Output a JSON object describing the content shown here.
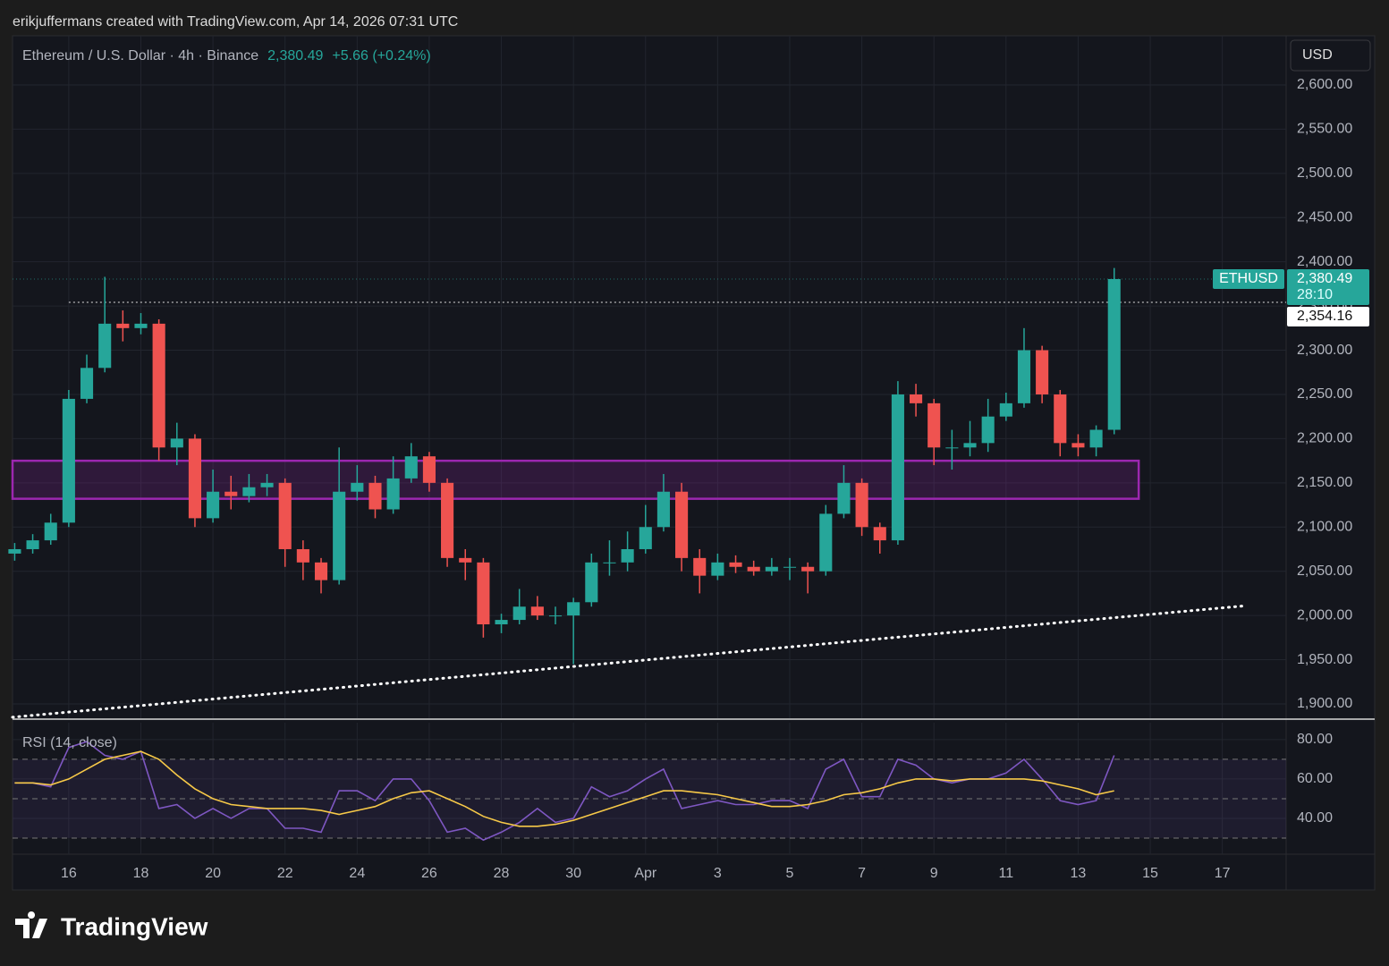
{
  "credit": "erikjuffermans created with TradingView.com, Apr 14, 2026 07:31 UTC",
  "brand": "TradingView",
  "currency": "USD",
  "chart_data": [
    {
      "type": "candlestick",
      "title": "Ethereum / U.S. Dollar · 4h · Binance",
      "symbol": "ETHUSD",
      "last": {
        "value": 2380.49,
        "label": "2,380.49"
      },
      "change": "+5.66 (+0.24%)",
      "countdown": "28:10",
      "level": {
        "value": 2354.16,
        "label": "2,354.16",
        "x_start": 0
      },
      "zone": {
        "low": 2132,
        "high": 2175,
        "x_end": 29.68,
        "color": "#9c27b0"
      },
      "trendline": {
        "x": [
          -1.56,
          32.65
        ],
        "values": [
          1885,
          2011
        ]
      },
      "up_color": "#26a69a",
      "down_color": "#ef5350",
      "x": [
        -1.5,
        -1,
        -0.5,
        0,
        0.5,
        1,
        1.5,
        2,
        2.5,
        3,
        3.5,
        4,
        4.5,
        5,
        5.5,
        6,
        6.5,
        7,
        7.5,
        8,
        8.5,
        9,
        9.5,
        10,
        10.5,
        11,
        11.5,
        12,
        12.5,
        13,
        13.5,
        14,
        14.5,
        15,
        15.5,
        16,
        16.5,
        17,
        17.5,
        18,
        18.5,
        19,
        19.5,
        20,
        20.5,
        21,
        21.5,
        22,
        22.5,
        23,
        23.5,
        24,
        24.5,
        25,
        25.5,
        26,
        26.5,
        27,
        27.5,
        28,
        28.5,
        29
      ],
      "open": [
        2070,
        2075,
        2085,
        2105,
        2245,
        2280,
        2330,
        2325,
        2330,
        2190,
        2200,
        2110,
        2140,
        2135,
        2145,
        2150,
        2075,
        2060,
        2040,
        2140,
        2150,
        2120,
        2155,
        2180,
        2150,
        2065,
        2060,
        1990,
        1995,
        2010,
        2000,
        2000,
        2015,
        2060,
        2060,
        2075,
        2100,
        2140,
        2065,
        2045,
        2060,
        2055,
        2050,
        2055,
        2055,
        2050,
        2115,
        2150,
        2100,
        2085,
        2250,
        2240,
        2190,
        2190,
        2195,
        2225,
        2240,
        2300,
        2250,
        2195,
        2190,
        2210
      ],
      "high": [
        2082,
        2092,
        2115,
        2255,
        2295,
        2383,
        2345,
        2342,
        2335,
        2218,
        2205,
        2165,
        2158,
        2160,
        2160,
        2155,
        2085,
        2065,
        2190,
        2170,
        2158,
        2180,
        2195,
        2185,
        2155,
        2075,
        2065,
        2002,
        2030,
        2022,
        2010,
        2020,
        2070,
        2085,
        2095,
        2125,
        2160,
        2150,
        2075,
        2070,
        2068,
        2062,
        2065,
        2065,
        2060,
        2125,
        2170,
        2155,
        2105,
        2265,
        2262,
        2245,
        2210,
        2220,
        2245,
        2252,
        2325,
        2305,
        2255,
        2205,
        2215,
        2393
      ],
      "low": [
        2062,
        2070,
        2080,
        2100,
        2240,
        2275,
        2310,
        2318,
        2175,
        2170,
        2100,
        2105,
        2120,
        2128,
        2135,
        2055,
        2040,
        2025,
        2035,
        2130,
        2110,
        2115,
        2150,
        2140,
        2055,
        2040,
        1975,
        1980,
        1990,
        1995,
        1990,
        1945,
        2010,
        2045,
        2050,
        2070,
        2095,
        2050,
        2025,
        2040,
        2048,
        2045,
        2045,
        2040,
        2025,
        2045,
        2110,
        2090,
        2070,
        2080,
        2225,
        2170,
        2165,
        2180,
        2185,
        2220,
        2235,
        2240,
        2180,
        2180,
        2180,
        2205
      ],
      "close": [
        2075,
        2085,
        2105,
        2245,
        2280,
        2330,
        2325,
        2330,
        2190,
        2200,
        2110,
        2140,
        2135,
        2145,
        2150,
        2075,
        2060,
        2040,
        2140,
        2150,
        2120,
        2155,
        2180,
        2150,
        2065,
        2060,
        1990,
        1995,
        2010,
        2000,
        2000,
        2015,
        2060,
        2060,
        2075,
        2100,
        2140,
        2065,
        2045,
        2060,
        2055,
        2050,
        2055,
        2055,
        2050,
        2115,
        2150,
        2100,
        2085,
        2250,
        2240,
        2190,
        2190,
        2195,
        2225,
        2240,
        2300,
        2250,
        2195,
        2190,
        2210,
        2380.49
      ],
      "xlim": [
        -1.56,
        33.77
      ],
      "xticks": [
        {
          "value": 0,
          "label": "16"
        },
        {
          "value": 2,
          "label": "18"
        },
        {
          "value": 4,
          "label": "20"
        },
        {
          "value": 6,
          "label": "22"
        },
        {
          "value": 8,
          "label": "24"
        },
        {
          "value": 10,
          "label": "26"
        },
        {
          "value": 12,
          "label": "28"
        },
        {
          "value": 14,
          "label": "30"
        },
        {
          "value": 16,
          "label": "Apr"
        },
        {
          "value": 18,
          "label": "3"
        },
        {
          "value": 20,
          "label": "5"
        },
        {
          "value": 22,
          "label": "7"
        },
        {
          "value": 24,
          "label": "9"
        },
        {
          "value": 26,
          "label": "11"
        },
        {
          "value": 28,
          "label": "13"
        },
        {
          "value": 30,
          "label": "15"
        },
        {
          "value": 32,
          "label": "17"
        }
      ],
      "ylim": [
        1883.8,
        2655.6
      ],
      "yticks": [
        {
          "value": 1900,
          "label": "1,900.00"
        },
        {
          "value": 1950,
          "label": "1,950.00"
        },
        {
          "value": 2000,
          "label": "2,000.00"
        },
        {
          "value": 2050,
          "label": "2,050.00"
        },
        {
          "value": 2100,
          "label": "2,100.00"
        },
        {
          "value": 2150,
          "label": "2,150.00"
        },
        {
          "value": 2200,
          "label": "2,200.00"
        },
        {
          "value": 2250,
          "label": "2,250.00"
        },
        {
          "value": 2300,
          "label": "2,300.00"
        },
        {
          "value": 2350,
          "label": "2,350.00"
        },
        {
          "value": 2400,
          "label": "2,400.00"
        },
        {
          "value": 2450,
          "label": "2,450.00"
        },
        {
          "value": 2500,
          "label": "2,500.00"
        },
        {
          "value": 2550,
          "label": "2,550.00"
        },
        {
          "value": 2600,
          "label": "2,600.00"
        }
      ],
      "grid": true
    },
    {
      "type": "line",
      "title": "RSI (14, close)",
      "x": [
        -1.5,
        -1,
        -0.5,
        0,
        0.5,
        1,
        1.5,
        2,
        2.5,
        3,
        3.5,
        4,
        4.5,
        5,
        5.5,
        6,
        6.5,
        7,
        7.5,
        8,
        8.5,
        9,
        9.5,
        10,
        10.5,
        11,
        11.5,
        12,
        12.5,
        13,
        13.5,
        14,
        14.5,
        15,
        15.5,
        16,
        16.5,
        17,
        17.5,
        18,
        18.5,
        19,
        19.5,
        20,
        20.5,
        21,
        21.5,
        22,
        22.5,
        23,
        23.5,
        24,
        24.5,
        25,
        25.5,
        26,
        26.5,
        27,
        27.5,
        28,
        28.5,
        29
      ],
      "series": [
        {
          "color": "#7e57c2",
          "values": [
            58,
            58,
            56,
            76,
            79,
            72,
            70,
            74,
            45,
            47,
            40,
            45,
            40,
            45,
            45,
            35,
            35,
            33,
            54,
            54,
            49,
            60,
            60,
            49,
            33,
            35,
            29,
            33,
            38,
            45,
            38,
            40,
            56,
            51,
            54,
            60,
            65,
            45,
            47,
            49,
            47,
            47,
            49,
            49,
            45,
            65,
            70,
            51,
            51,
            70,
            67,
            60,
            58,
            60,
            60,
            63,
            70,
            60,
            49,
            47,
            49,
            72
          ]
        },
        {
          "color": "#f7c948",
          "values": [
            58,
            58,
            57,
            60,
            65,
            70,
            72,
            74,
            70,
            62,
            55,
            50,
            47,
            46,
            45,
            45,
            45,
            44,
            42,
            44,
            46,
            50,
            53,
            54,
            50,
            46,
            41,
            38,
            36,
            36,
            37,
            39,
            42,
            45,
            48,
            51,
            54,
            54,
            53,
            52,
            50,
            48,
            46,
            46,
            47,
            49,
            52,
            53,
            55,
            58,
            60,
            60,
            59,
            60,
            60,
            60,
            60,
            59,
            57,
            55,
            52,
            54
          ]
        }
      ],
      "bands": [
        30,
        50,
        70
      ],
      "xlim": [
        -1.56,
        33.77
      ],
      "ylim": [
        21.8,
        88.6
      ],
      "yticks": [
        {
          "value": 40,
          "label": "40.00"
        },
        {
          "value": 60,
          "label": "60.00"
        },
        {
          "value": 80,
          "label": "80.00"
        }
      ],
      "grid": true
    }
  ]
}
